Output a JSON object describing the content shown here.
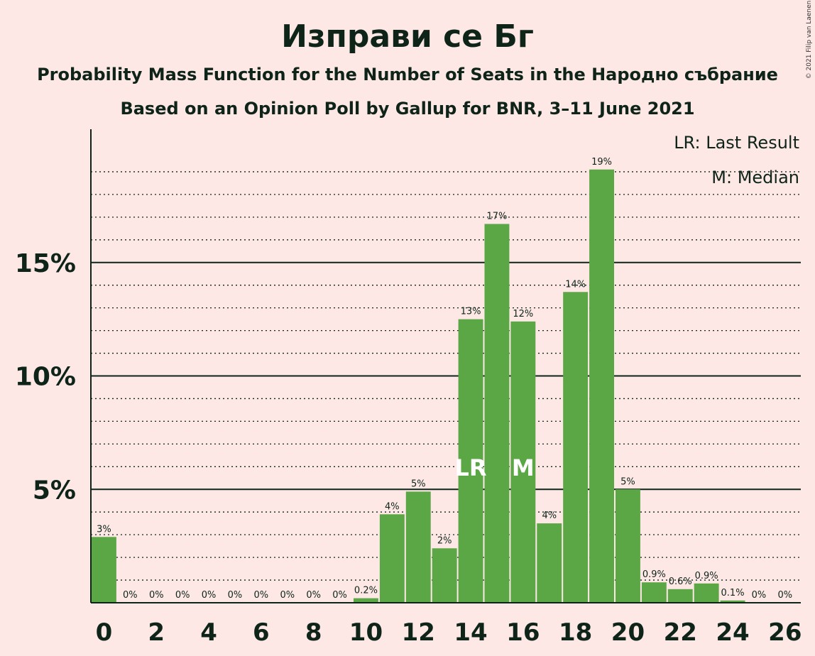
{
  "title": "Изправи се Бг",
  "subtitle1": "Probability Mass Function for the Number of Seats in the Народно събрание",
  "subtitle2": "Based on an Opinion Poll by Gallup for BNR, 3–11 June 2021",
  "copyright": "© 2021 Filip van Laenen",
  "legend": {
    "last_result": "LR: Last Result",
    "median": "M: Median"
  },
  "colors": {
    "bar": "#5ba645",
    "background": "#fde8e6",
    "text": "#0f2419"
  },
  "chart_data": {
    "type": "bar",
    "x": [
      0,
      1,
      2,
      3,
      4,
      5,
      6,
      7,
      8,
      9,
      10,
      11,
      12,
      13,
      14,
      15,
      16,
      17,
      18,
      19,
      20,
      21,
      22,
      23,
      24,
      25,
      26
    ],
    "values": [
      2.9,
      0,
      0,
      0,
      0,
      0,
      0,
      0,
      0,
      0,
      0.2,
      3.9,
      4.9,
      2.4,
      12.5,
      16.7,
      12.4,
      3.5,
      13.7,
      19.1,
      5.0,
      0.9,
      0.6,
      0.85,
      0.1,
      0,
      0
    ],
    "labels": [
      "3%",
      "0%",
      "0%",
      "0%",
      "0%",
      "0%",
      "0%",
      "0%",
      "0%",
      "0%",
      "0.2%",
      "4%",
      "5%",
      "2%",
      "13%",
      "17%",
      "12%",
      "4%",
      "14%",
      "19%",
      "5%",
      "0.9%",
      "0.6%",
      "0.9%",
      "0.1%",
      "0%",
      "0%"
    ],
    "x_tick_labels": [
      "0",
      "2",
      "4",
      "6",
      "8",
      "10",
      "12",
      "14",
      "16",
      "18",
      "20",
      "22",
      "24",
      "26"
    ],
    "y_tick_labels": [
      "5%",
      "10%",
      "15%"
    ],
    "y_tick_values": [
      5,
      10,
      15
    ],
    "ylim": [
      0,
      21
    ],
    "markers": [
      {
        "x": 14,
        "text": "LR"
      },
      {
        "x": 16,
        "text": "M"
      }
    ]
  }
}
